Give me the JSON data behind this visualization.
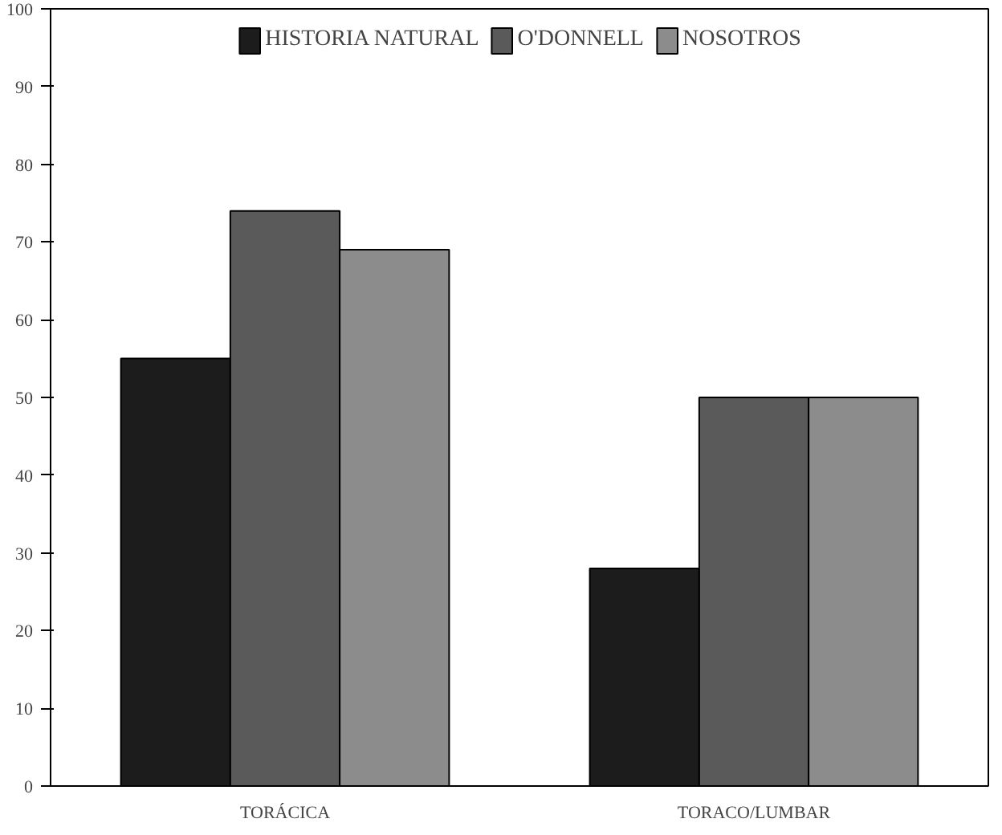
{
  "chart_data": {
    "type": "bar",
    "categories": [
      "TORÁCICA",
      "TORACO/LUMBAR"
    ],
    "series": [
      {
        "name": "HISTORIA NATURAL",
        "color": "#1c1c1c",
        "values": [
          55,
          28
        ]
      },
      {
        "name": "O'DONNELL",
        "color": "#5a5a5a",
        "values": [
          74,
          50
        ]
      },
      {
        "name": "NOSOTROS",
        "color": "#8c8c8c",
        "values": [
          69,
          50
        ]
      }
    ],
    "ylim": [
      0,
      100
    ],
    "yticks": [
      0,
      10,
      20,
      30,
      40,
      50,
      60,
      70,
      80,
      90,
      100
    ],
    "grid": false,
    "legend": "top"
  }
}
